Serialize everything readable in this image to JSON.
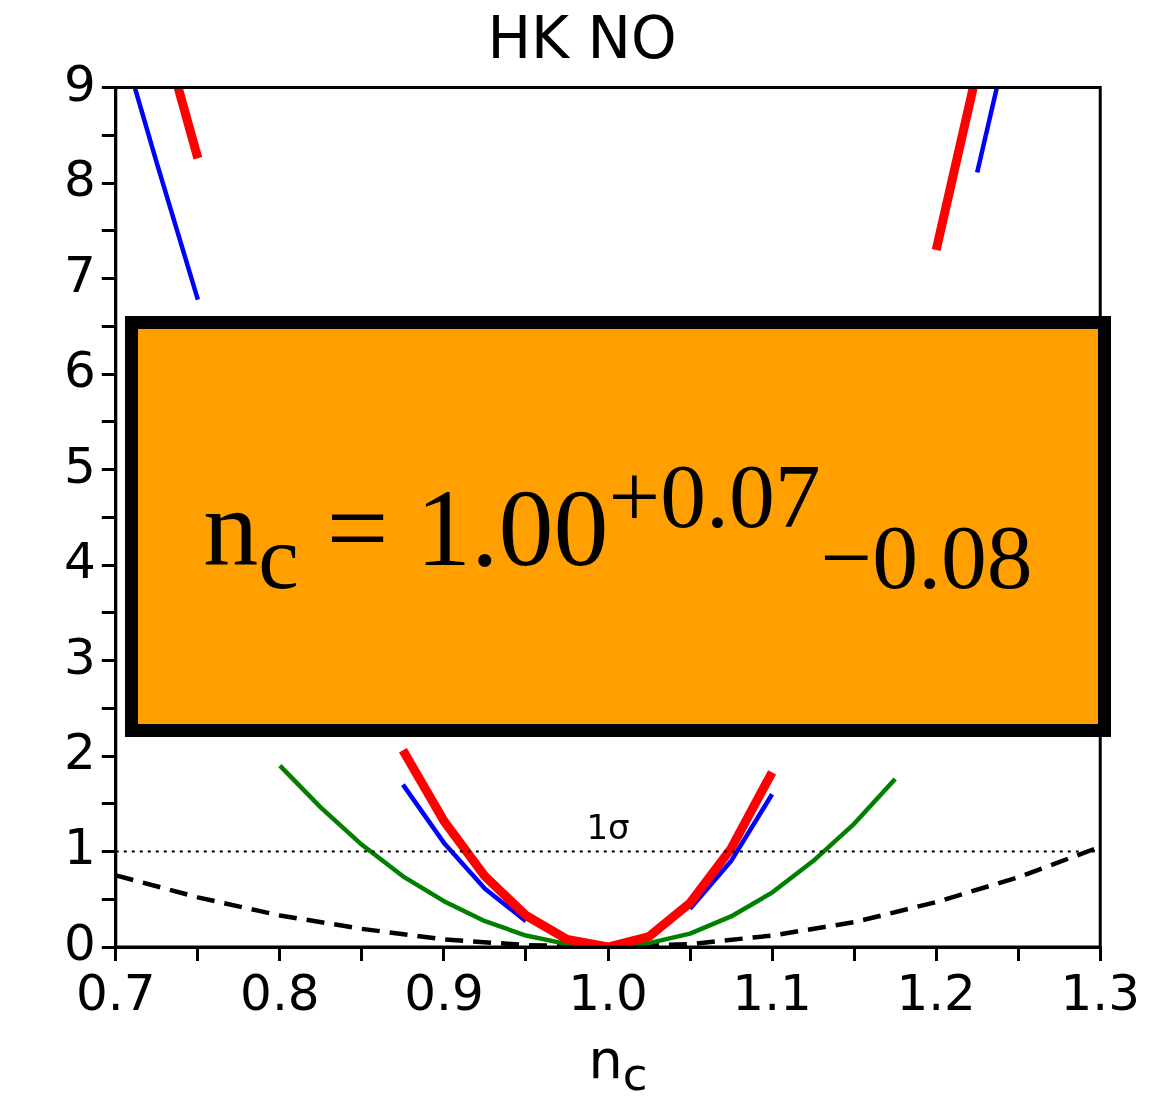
{
  "chart_data": {
    "type": "line",
    "title": "HK NO",
    "xlabel": "n$_{c}$",
    "xlim": [
      0.7,
      1.3
    ],
    "ylim": [
      0,
      9
    ],
    "xticks": [
      0.7,
      {
        "value": 0.75,
        "label": null
      },
      0.8,
      {
        "value": 0.85,
        "label": null
      },
      0.9,
      {
        "value": 0.95,
        "label": null
      },
      {
        "value": 1,
        "label": "1.0"
      },
      {
        "value": 1.05,
        "label": null
      },
      1.1,
      {
        "value": 1.15,
        "label": null
      },
      1.2,
      {
        "value": 1.25,
        "label": null
      },
      1.3
    ],
    "yticks": [
      0,
      {
        "value": 0.5,
        "label": null
      },
      1,
      {
        "value": 1.5,
        "label": null
      },
      2,
      {
        "value": 2.5,
        "label": null
      },
      3,
      {
        "value": 3.5,
        "label": null
      },
      4,
      {
        "value": 4.5,
        "label": null
      },
      5,
      {
        "value": 5.5,
        "label": null
      },
      6,
      {
        "value": 6.5,
        "label": null
      },
      7,
      {
        "value": 7.5,
        "label": null
      },
      8,
      {
        "value": 8.5,
        "label": null
      },
      9
    ],
    "grid": false,
    "legend": false,
    "marker": "none",
    "series": [
      {
        "color": "#ff0000",
        "x": [
          0.738,
          0.75,
          0.775,
          0.8,
          0.825,
          0.85,
          0.875,
          0.9,
          0.925,
          0.95,
          0.975,
          1.0,
          1.025,
          1.05,
          1.075,
          1.1,
          1.125,
          1.15,
          1.175,
          1.2,
          1.2226
        ],
        "values": [
          9,
          8.26,
          null,
          null,
          null,
          null,
          2.06,
          1.32,
          0.74,
          0.33,
          0.08,
          0,
          0.11,
          0.46,
          1.03,
          1.83,
          null,
          null,
          null,
          7.3,
          9
        ]
      },
      {
        "color": "#0000ff",
        "x": [
          0.7116,
          0.725,
          0.75,
          0.775,
          0.8,
          0.825,
          0.85,
          0.875,
          0.9,
          0.925,
          0.95,
          0.975,
          1.0,
          1.025,
          1.05,
          1.075,
          1.1,
          1.125,
          1.15,
          1.175,
          1.2,
          1.225,
          1.237
        ],
        "values": [
          9,
          8.21,
          6.78,
          null,
          null,
          null,
          null,
          1.7,
          1.09,
          0.61,
          0.27,
          null,
          null,
          null,
          0.4,
          0.9,
          1.6,
          null,
          null,
          null,
          null,
          8.11,
          9
        ]
      },
      {
        "color": "#008000",
        "x": [
          0.8,
          0.825,
          0.85,
          0.875,
          0.9,
          0.925,
          0.95,
          0.975,
          1.0,
          1.025,
          1.05,
          1.075,
          1.1,
          1.125,
          1.15,
          1.175
        ],
        "values": [
          1.9,
          1.46,
          1.07,
          0.74,
          0.48,
          0.27,
          0.12,
          0.03,
          0,
          0.04,
          0.14,
          0.32,
          0.57,
          0.9,
          1.29,
          1.76
        ]
      },
      {
        "color": "#000000",
        "line_style": "dashed",
        "x": [
          0.7,
          0.75,
          0.8,
          0.85,
          0.9,
          0.95,
          1.0,
          1.05,
          1.1,
          1.15,
          1.2,
          1.25,
          1.3
        ],
        "values": [
          0.75,
          0.52,
          0.33,
          0.19,
          0.08,
          0.02,
          0,
          0.03,
          0.12,
          0.26,
          0.47,
          0.73,
          1.05
        ]
      }
    ],
    "ref_lines": [
      {
        "axis": "y",
        "value": 1,
        "label": "1σ",
        "line_style": "dotted",
        "color": "#000000"
      }
    ],
    "annotations": [
      "n$_{c}$ = 1.00$^{+0.07}$$_{−0.08}$"
    ]
  }
}
